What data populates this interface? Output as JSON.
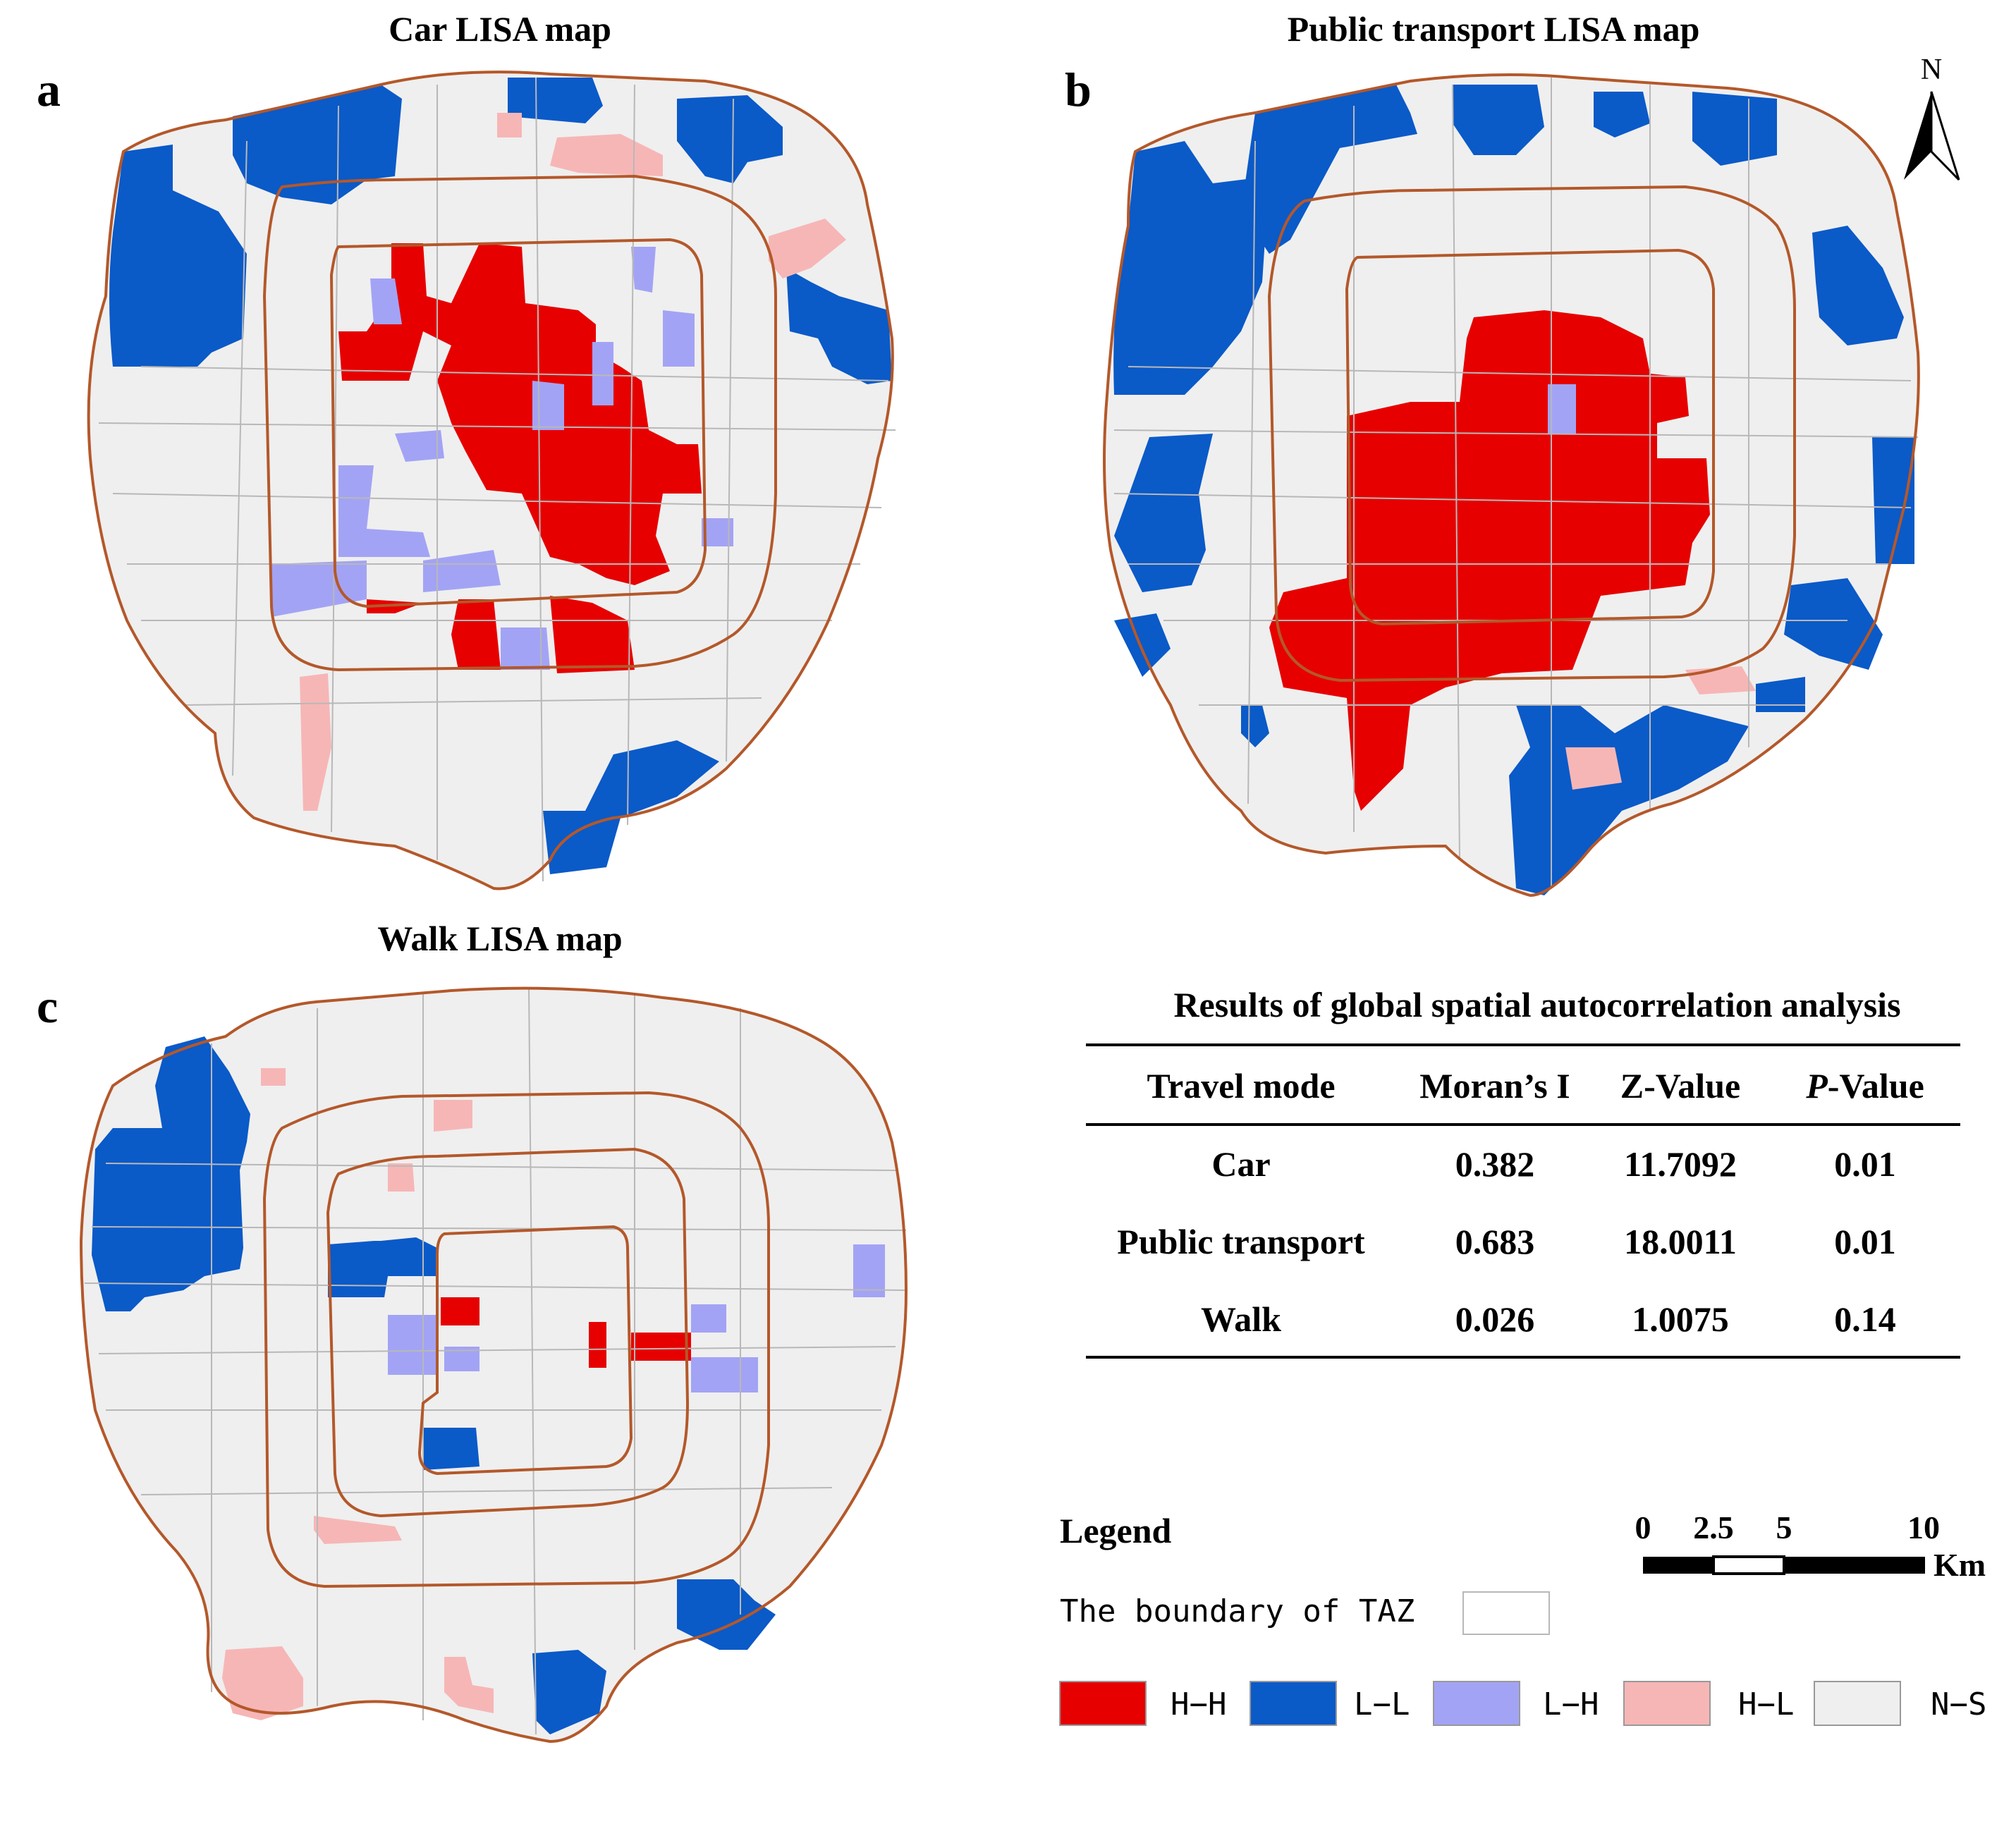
{
  "colors": {
    "hh": "#e60000",
    "ll": "#0a5ac8",
    "lh": "#a3a3f5",
    "hl": "#f7b6b6",
    "ns": "#efefef",
    "boundary": "#b4582a",
    "taz_line": "#b8b8b8",
    "text": "#000000"
  },
  "maps": {
    "a": {
      "letter": "a",
      "title": "Car LISA map",
      "scale_description": "TAZ-level LISA clusters: H-H inside the second ring, L-L along western and northern edges"
    },
    "b": {
      "letter": "b",
      "title": "Public transport LISA map",
      "scale_description": "large H-H core in centre, L-L along periphery"
    },
    "c": {
      "letter": "c",
      "title": "Walk LISA map",
      "scale_description": "mostly not significant"
    }
  },
  "north_arrow": {
    "label": "N"
  },
  "results_table": {
    "title": "Results of global spatial autocorrelation analysis",
    "headers": [
      "Travel mode",
      "Moran’s I",
      "Z-Value",
      "P-Value"
    ],
    "header_italic_part": "P",
    "header_rest_part": "-Value",
    "rows": [
      [
        "Car",
        "0.382",
        "11.7092",
        "0.01"
      ],
      [
        "Public transport",
        "0.683",
        "18.0011",
        "0.01"
      ],
      [
        "Walk",
        "0.026",
        "1.0075",
        "0.14"
      ]
    ]
  },
  "legend": {
    "title": "Legend",
    "boundary_label": "The boundary of TAZ",
    "items": [
      {
        "code": "hh",
        "label": "H−H"
      },
      {
        "code": "ll",
        "label": "L−L"
      },
      {
        "code": "lh",
        "label": "L−H"
      },
      {
        "code": "hl",
        "label": "H−L"
      },
      {
        "code": "ns",
        "label": "N−S"
      }
    ]
  },
  "scale_bar": {
    "ticks": [
      "0",
      "2.5",
      "5",
      "10"
    ],
    "unit": "Km"
  }
}
